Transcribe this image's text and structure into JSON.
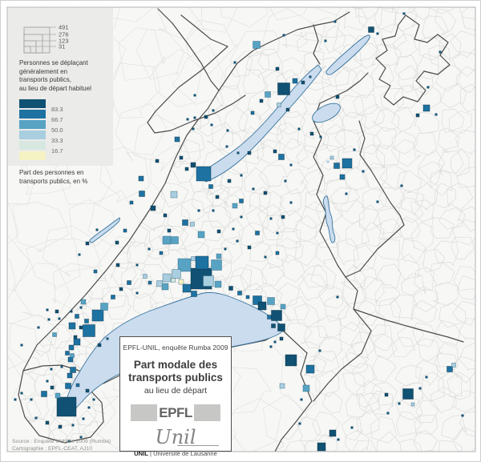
{
  "legend": {
    "size_values": [
      "491",
      "276",
      "123",
      "31"
    ],
    "caption_lines": [
      "Personnes se déplaçant",
      "généralement en",
      "transports publics,",
      "au lieu de départ habituel"
    ],
    "scale_labels": [
      "83.3",
      "66.7",
      "50.0",
      "33.3",
      "16.7"
    ],
    "footer_lines": [
      "Part des personnes en",
      "transports publics, en %"
    ]
  },
  "title_box": {
    "header": "EPFL-UNIL, enquête Rumba 2009",
    "title_line1": "Part modale des",
    "title_line2": "transports publics",
    "subtitle": "au lieu de départ",
    "epfl_logo": "EPFL",
    "unil_script": "Unil",
    "unil_bold": "UNIL",
    "unil_rest": "| Université de Lausanne"
  },
  "source": {
    "line1": "Source : Enquête Mobilité 2009 (Rumba)",
    "line2": "Cartographie : EPFL-CEAT, AJ10"
  },
  "map": {
    "palette": [
      "#115173",
      "#1d72a2",
      "#58a3c3",
      "#a9cedf",
      "#d6e8df",
      "#f5f2c4"
    ],
    "lake_fill": "#cbdcee",
    "lake_stroke": "#37749f",
    "land_fill": "#f7f7f5",
    "canton_border": "#4b4b49",
    "commune_border": "#dcdcda",
    "squares": [
      [
        319,
        55,
        9,
        2
      ],
      [
        353,
        43,
        3,
        0
      ],
      [
        292,
        77,
        3,
        0
      ],
      [
        345,
        85,
        4,
        0
      ],
      [
        353,
        110,
        15,
        0
      ],
      [
        367,
        100,
        6,
        1
      ],
      [
        377,
        102,
        4,
        0
      ],
      [
        386,
        95,
        3,
        0
      ],
      [
        333,
        117,
        7,
        2
      ],
      [
        325,
        125,
        4,
        0
      ],
      [
        347,
        130,
        5,
        3
      ],
      [
        358,
        136,
        4,
        0
      ],
      [
        462,
        36,
        7,
        0
      ],
      [
        470,
        41,
        3,
        0
      ],
      [
        417,
        26,
        3,
        0
      ],
      [
        503,
        16,
        3,
        0
      ],
      [
        531,
        134,
        8,
        1
      ],
      [
        520,
        143,
        4,
        0
      ],
      [
        543,
        142,
        3,
        0
      ],
      [
        533,
        108,
        3,
        0
      ],
      [
        548,
        64,
        3,
        0
      ],
      [
        420,
        120,
        4,
        0
      ],
      [
        405,
        50,
        3,
        0
      ],
      [
        242,
        118,
        3,
        0
      ],
      [
        265,
        137,
        3,
        0
      ],
      [
        242,
        146,
        3,
        0
      ],
      [
        283,
        162,
        3,
        0
      ],
      [
        233,
        148,
        3,
        0
      ],
      [
        263,
        155,
        3,
        0
      ],
      [
        282,
        182,
        3,
        0
      ],
      [
        314,
        140,
        4,
        1
      ],
      [
        296,
        190,
        3,
        0
      ],
      [
        310,
        190,
        4,
        0
      ],
      [
        432,
        203,
        12,
        1
      ],
      [
        419,
        206,
        7,
        1
      ],
      [
        426,
        220,
        6,
        1
      ],
      [
        413,
        196,
        4,
        3
      ],
      [
        408,
        201,
        3,
        3
      ],
      [
        441,
        186,
        3,
        0
      ],
      [
        452,
        213,
        3,
        0
      ],
      [
        431,
        241,
        3,
        0
      ],
      [
        399,
        170,
        3,
        0
      ],
      [
        470,
        251,
        3,
        0
      ],
      [
        500,
        231,
        3,
        0
      ],
      [
        350,
        195,
        7,
        1
      ],
      [
        342,
        188,
        4,
        0
      ],
      [
        362,
        205,
        3,
        0
      ],
      [
        372,
        160,
        3,
        0
      ],
      [
        388,
        166,
        4,
        0
      ],
      [
        420,
        370,
        3,
        0
      ],
      [
        253,
        216,
        18,
        1
      ],
      [
        240,
        205,
        6,
        0
      ],
      [
        232,
        210,
        4,
        0
      ],
      [
        225,
        196,
        4,
        0
      ],
      [
        262,
        232,
        5,
        1
      ],
      [
        270,
        245,
        4,
        0
      ],
      [
        285,
        225,
        4,
        0
      ],
      [
        300,
        218,
        3,
        0
      ],
      [
        216,
        242,
        8,
        3
      ],
      [
        176,
        241,
        7,
        1
      ],
      [
        163,
        252,
        4,
        1
      ],
      [
        190,
        259,
        6,
        0
      ],
      [
        205,
        268,
        4,
        0
      ],
      [
        230,
        277,
        7,
        1
      ],
      [
        239,
        279,
        5,
        3
      ],
      [
        210,
        287,
        4,
        0
      ],
      [
        250,
        292,
        8,
        2
      ],
      [
        207,
        299,
        10,
        2
      ],
      [
        217,
        299,
        9,
        2
      ],
      [
        280,
        310,
        3,
        0
      ],
      [
        295,
        300,
        3,
        0
      ],
      [
        310,
        308,
        4,
        0
      ],
      [
        272,
        288,
        4,
        0
      ],
      [
        290,
        285,
        3,
        0
      ],
      [
        320,
        290,
        5,
        1
      ],
      [
        292,
        256,
        6,
        2
      ],
      [
        337,
        272,
        3,
        0
      ],
      [
        352,
        270,
        4,
        0
      ],
      [
        345,
        290,
        3,
        0
      ],
      [
        362,
        252,
        3,
        0
      ],
      [
        330,
        320,
        3,
        0
      ],
      [
        345,
        315,
        4,
        1
      ],
      [
        300,
        270,
        3,
        0
      ],
      [
        265,
        262,
        3,
        0
      ],
      [
        247,
        262,
        3,
        0
      ],
      [
        330,
        240,
        4,
        0
      ],
      [
        315,
        235,
        3,
        0
      ],
      [
        355,
        225,
        3,
        0
      ],
      [
        300,
        250,
        5,
        1
      ],
      [
        145,
        302,
        4,
        0
      ],
      [
        108,
        303,
        4,
        0
      ],
      [
        120,
        286,
        3,
        0
      ],
      [
        98,
        317,
        3,
        0
      ],
      [
        155,
        287,
        4,
        1
      ],
      [
        175,
        222,
        6,
        1
      ],
      [
        195,
        200,
        4,
        0
      ],
      [
        220,
        173,
        6,
        1
      ],
      [
        240,
        160,
        3,
        0
      ],
      [
        256,
        145,
        4,
        0
      ],
      [
        185,
        310,
        3,
        0
      ],
      [
        200,
        315,
        4,
        1
      ],
      [
        170,
        330,
        3,
        0
      ],
      [
        26,
        430,
        3,
        0
      ],
      [
        229,
        330,
        16,
        2
      ],
      [
        251,
        327,
        16,
        1
      ],
      [
        250,
        347,
        26,
        0
      ],
      [
        269,
        330,
        13,
        2
      ],
      [
        240,
        322,
        5,
        3
      ],
      [
        272,
        319,
        6,
        2
      ],
      [
        219,
        341,
        11,
        3
      ],
      [
        207,
        346,
        10,
        3
      ],
      [
        198,
        353,
        7,
        3
      ],
      [
        225,
        351,
        6,
        5
      ],
      [
        215,
        349,
        5,
        4
      ],
      [
        232,
        359,
        10,
        1
      ],
      [
        259,
        350,
        13,
        3
      ],
      [
        271,
        354,
        8,
        2
      ],
      [
        287,
        359,
        5,
        0
      ],
      [
        205,
        357,
        8,
        2
      ],
      [
        241,
        366,
        7,
        1
      ],
      [
        186,
        352,
        4,
        1
      ],
      [
        180,
        344,
        5,
        3
      ],
      [
        160,
        352,
        5,
        1
      ],
      [
        150,
        360,
        4,
        0
      ],
      [
        140,
        370,
        5,
        1
      ],
      [
        170,
        365,
        3,
        0
      ],
      [
        103,
        376,
        6,
        2
      ],
      [
        118,
        338,
        4,
        1
      ],
      [
        146,
        330,
        4,
        0
      ],
      [
        129,
        382,
        9,
        2
      ],
      [
        121,
        393,
        14,
        1
      ],
      [
        110,
        412,
        15,
        1
      ],
      [
        107,
        400,
        5,
        1
      ],
      [
        100,
        408,
        4,
        0
      ],
      [
        89,
        406,
        8,
        1
      ],
      [
        95,
        394,
        5,
        1
      ],
      [
        67,
        417,
        5,
        2
      ],
      [
        95,
        426,
        8,
        1
      ],
      [
        88,
        433,
        6,
        1
      ],
      [
        83,
        440,
        5,
        1
      ],
      [
        89,
        443,
        5,
        2
      ],
      [
        87,
        448,
        6,
        1
      ],
      [
        90,
        461,
        7,
        1
      ],
      [
        86,
        468,
        6,
        1
      ],
      [
        84,
        481,
        7,
        1
      ],
      [
        71,
        493,
        6,
        2
      ],
      [
        54,
        491,
        7,
        1
      ],
      [
        82,
        507,
        24,
        0
      ],
      [
        100,
        383,
        3,
        0
      ],
      [
        88,
        388,
        3,
        0
      ],
      [
        73,
        397,
        3,
        0
      ],
      [
        58,
        386,
        3,
        0
      ],
      [
        47,
        408,
        3,
        0
      ],
      [
        76,
        457,
        3,
        0
      ],
      [
        63,
        460,
        3,
        0
      ],
      [
        58,
        475,
        3,
        0
      ],
      [
        38,
        498,
        3,
        0
      ],
      [
        18,
        498,
        3,
        0
      ],
      [
        26,
        490,
        3,
        0
      ],
      [
        123,
        430,
        4,
        0
      ],
      [
        133,
        422,
        3,
        0
      ],
      [
        93,
        420,
        4,
        0
      ],
      [
        70,
        388,
        4,
        0
      ],
      [
        60,
        398,
        3,
        0
      ],
      [
        44,
        521,
        3,
        0
      ],
      [
        58,
        527,
        4,
        0
      ],
      [
        74,
        532,
        4,
        0
      ],
      [
        90,
        530,
        3,
        0
      ],
      [
        103,
        522,
        3,
        0
      ],
      [
        110,
        508,
        3,
        0
      ],
      [
        116,
        498,
        3,
        0
      ],
      [
        108,
        487,
        4,
        0
      ],
      [
        96,
        480,
        4,
        1
      ],
      [
        64,
        483,
        4,
        0
      ],
      [
        100,
        545,
        3,
        0
      ],
      [
        85,
        550,
        3,
        0
      ],
      [
        298,
        365,
        5,
        1
      ],
      [
        308,
        370,
        4,
        1
      ],
      [
        320,
        374,
        11,
        1
      ],
      [
        326,
        381,
        10,
        0
      ],
      [
        337,
        375,
        9,
        2
      ],
      [
        344,
        393,
        13,
        0
      ],
      [
        352,
        382,
        6,
        2
      ],
      [
        335,
        395,
        5,
        1
      ],
      [
        350,
        408,
        9,
        0
      ],
      [
        340,
        406,
        5,
        0
      ],
      [
        350,
        422,
        4,
        0
      ],
      [
        342,
        426,
        3,
        0
      ],
      [
        337,
        432,
        3,
        0
      ],
      [
        362,
        449,
        14,
        0
      ],
      [
        386,
        460,
        10,
        1
      ],
      [
        351,
        481,
        6,
        3
      ],
      [
        381,
        484,
        8,
        2
      ],
      [
        375,
        498,
        3,
        0
      ],
      [
        508,
        491,
        13,
        0
      ],
      [
        481,
        492,
        4,
        0
      ],
      [
        523,
        484,
        3,
        0
      ],
      [
        531,
        470,
        3,
        0
      ],
      [
        514,
        504,
        4,
        3
      ],
      [
        497,
        503,
        3,
        0
      ],
      [
        483,
        515,
        3,
        0
      ],
      [
        576,
        518,
        3,
        0
      ],
      [
        560,
        460,
        7,
        1
      ],
      [
        565,
        455,
        5,
        3
      ],
      [
        414,
        540,
        8,
        0
      ],
      [
        400,
        557,
        10,
        0
      ],
      [
        438,
        533,
        3,
        0
      ],
      [
        421,
        548,
        3,
        0
      ],
      [
        373,
        528,
        3,
        0
      ],
      [
        398,
        437,
        3,
        0
      ]
    ]
  }
}
